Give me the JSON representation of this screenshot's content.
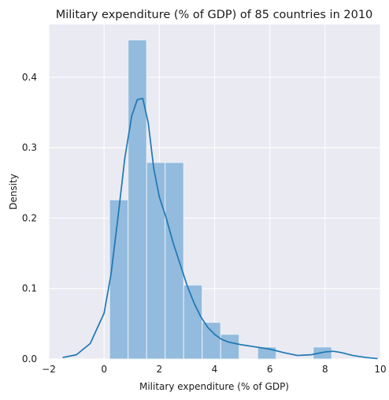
{
  "chart_data": {
    "type": "bar",
    "title": "Military expenditure (% of GDP) of 85 countries in 2010",
    "xlabel": "Military expenditure (% of GDP)",
    "ylabel": "Density",
    "xlim": [
      -2,
      10
    ],
    "ylim": [
      0,
      0.475
    ],
    "xticks": [
      -2,
      0,
      2,
      4,
      6,
      8,
      10
    ],
    "xtick_labels": [
      "−2",
      "0",
      "2",
      "4",
      "6",
      "8",
      "10"
    ],
    "yticks": [
      0.0,
      0.1,
      0.2,
      0.3,
      0.4
    ],
    "ytick_labels": [
      "0.0",
      "0.1",
      "0.2",
      "0.3",
      "0.4"
    ],
    "grid": true,
    "histogram": {
      "bin_edges": [
        0.2,
        0.87,
        1.54,
        2.21,
        2.88,
        3.55,
        4.22,
        4.89,
        5.56,
        6.23,
        6.9,
        7.57,
        8.24
      ],
      "density": [
        0.226,
        0.453,
        0.279,
        0.279,
        0.105,
        0.052,
        0.035,
        0,
        0.017,
        0,
        0,
        0.017
      ],
      "color": "#92bbdd"
    },
    "kde": {
      "x": [
        -1.5,
        -1.0,
        -0.5,
        0.0,
        0.25,
        0.5,
        0.75,
        1.0,
        1.2,
        1.4,
        1.6,
        1.8,
        2.0,
        2.25,
        2.5,
        2.75,
        3.0,
        3.25,
        3.5,
        3.75,
        4.0,
        4.25,
        4.5,
        4.75,
        5.0,
        5.5,
        6.0,
        6.5,
        7.0,
        7.5,
        8.0,
        8.3,
        8.6,
        9.0,
        9.5,
        9.9
      ],
      "y": [
        0.002,
        0.006,
        0.022,
        0.065,
        0.12,
        0.2,
        0.285,
        0.345,
        0.368,
        0.37,
        0.335,
        0.27,
        0.23,
        0.2,
        0.165,
        0.135,
        0.105,
        0.08,
        0.06,
        0.045,
        0.035,
        0.028,
        0.024,
        0.022,
        0.02,
        0.017,
        0.014,
        0.009,
        0.005,
        0.006,
        0.01,
        0.011,
        0.009,
        0.005,
        0.002,
        0.0005
      ],
      "color": "#1f77b4"
    },
    "colors": {
      "plot_background": "#eaeaf2",
      "grid": "#ffffff"
    }
  }
}
